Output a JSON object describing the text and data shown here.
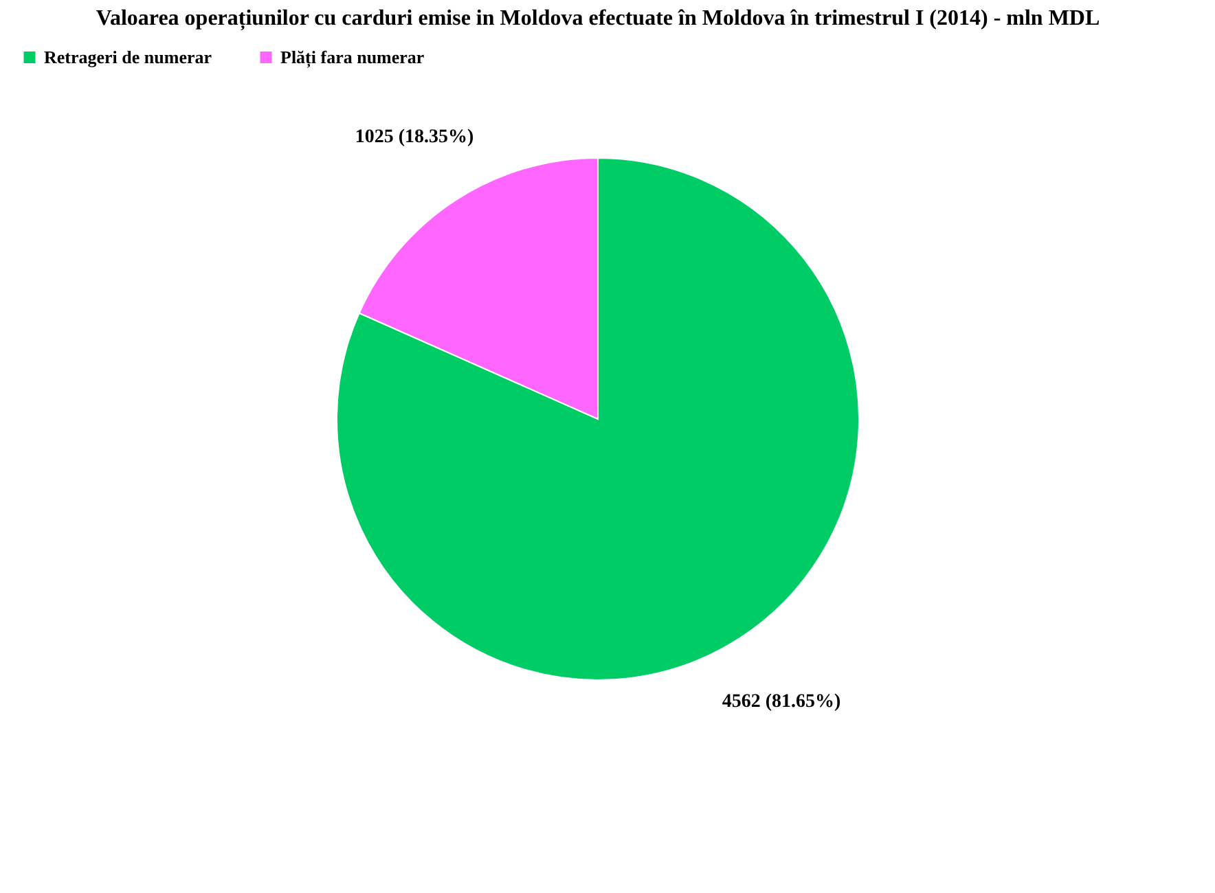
{
  "chart_data": {
    "type": "pie",
    "title": "Valoarea operațiunilor cu carduri emise in Moldova efectuate în Moldova în trimestrul I (2014) - mln MDL",
    "categories": [
      "Retrageri de numerar",
      "Plăți fara numerar"
    ],
    "values": [
      4562,
      1025
    ],
    "colors": [
      "#00cc66",
      "#ff66ff"
    ],
    "value_labels": [
      "4562 (81.65%)",
      "1025 (18.35%)"
    ],
    "legend": "top left"
  }
}
